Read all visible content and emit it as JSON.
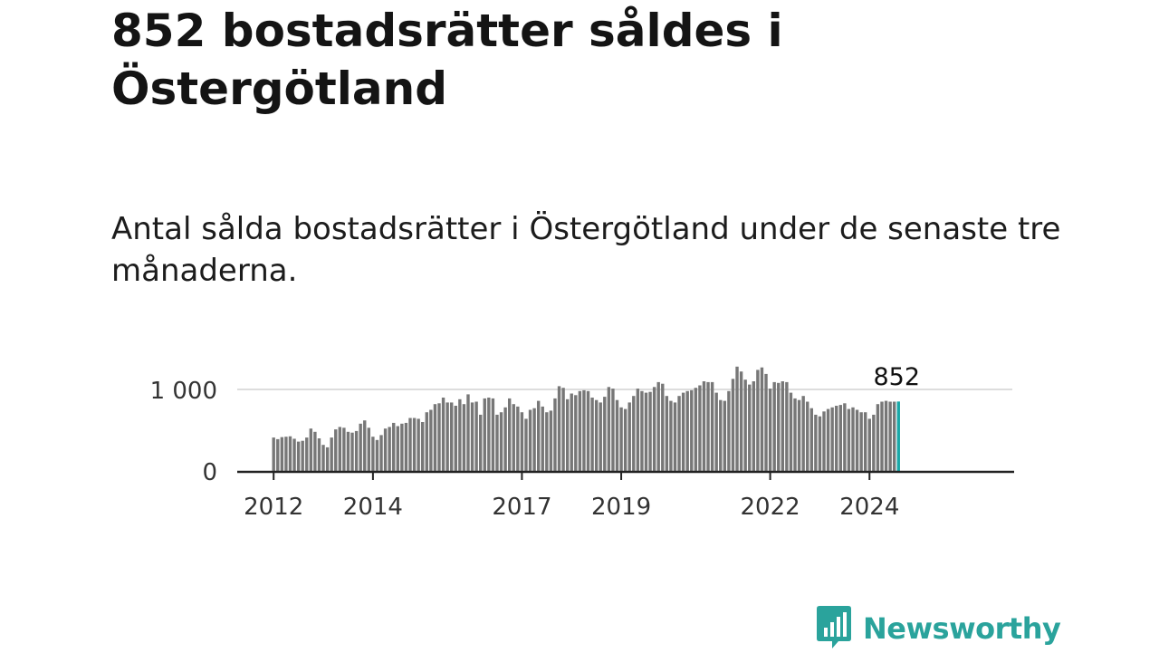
{
  "title": "852 bostadsrätter såldes i Östergötland",
  "subtitle": "Antal sålda bostadsrätter i Östergötland under de senaste tre månaderna.",
  "brand": {
    "name": "Newsworthy",
    "icon": "newsworthy-logo-icon",
    "color": "#2aa39c"
  },
  "colors": {
    "bar": "#777777",
    "highlight": "#1aa8a8",
    "axis": "#222222",
    "grid": "#dddddd"
  },
  "chart_data": {
    "type": "bar",
    "start": "2012-01",
    "ylim": [
      0,
      1380
    ],
    "yticks": [
      0,
      1000
    ],
    "ytick_labels": [
      "0",
      "1 000"
    ],
    "xtick_labels": [
      "2012",
      "2014",
      "2017",
      "2019",
      "2022",
      "2024"
    ],
    "annotation": "852",
    "grid": true,
    "values": [
      410,
      390,
      415,
      420,
      425,
      395,
      360,
      370,
      410,
      520,
      480,
      400,
      320,
      290,
      410,
      510,
      540,
      530,
      480,
      470,
      490,
      580,
      620,
      530,
      420,
      380,
      440,
      520,
      540,
      590,
      550,
      580,
      590,
      650,
      650,
      640,
      600,
      720,
      750,
      820,
      830,
      900,
      840,
      840,
      800,
      880,
      820,
      940,
      840,
      850,
      690,
      890,
      900,
      890,
      690,
      720,
      780,
      890,
      820,
      790,
      720,
      640,
      750,
      770,
      860,
      790,
      720,
      740,
      890,
      1040,
      1020,
      880,
      950,
      930,
      980,
      990,
      980,
      900,
      870,
      840,
      910,
      1030,
      1010,
      870,
      780,
      760,
      840,
      920,
      1010,
      980,
      960,
      970,
      1030,
      1090,
      1070,
      920,
      860,
      840,
      920,
      960,
      980,
      990,
      1020,
      1050,
      1100,
      1090,
      1090,
      960,
      870,
      860,
      980,
      1130,
      1280,
      1220,
      1120,
      1060,
      1100,
      1240,
      1270,
      1190,
      1010,
      1090,
      1080,
      1100,
      1090,
      960,
      890,
      870,
      920,
      850,
      770,
      690,
      670,
      730,
      760,
      780,
      800,
      810,
      830,
      760,
      780,
      750,
      720,
      720,
      640,
      690,
      820,
      850,
      860,
      850,
      850,
      852
    ]
  }
}
